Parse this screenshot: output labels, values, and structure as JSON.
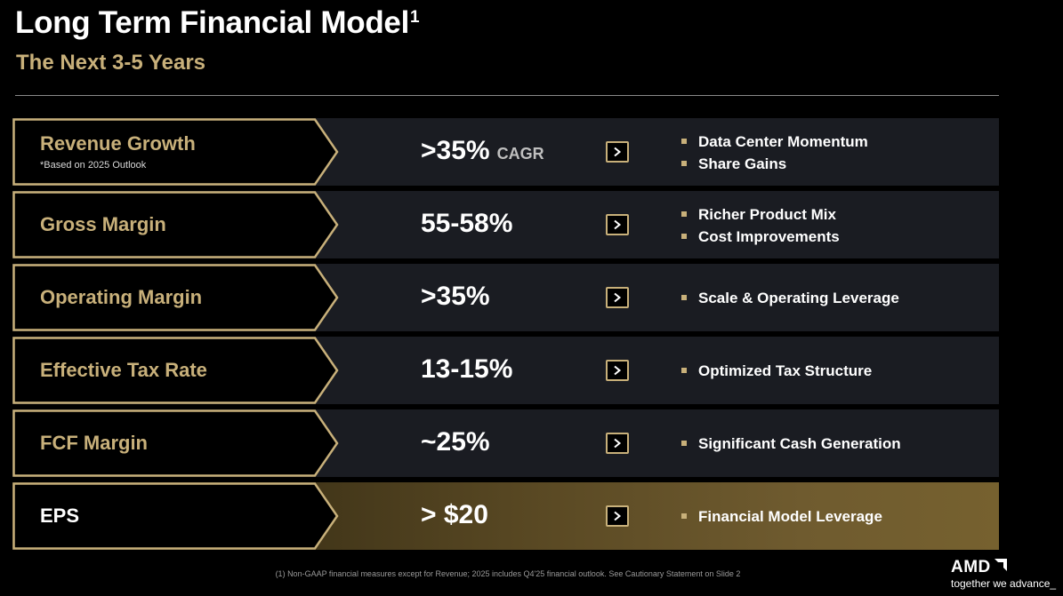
{
  "header": {
    "title": "Long Term Financial Model",
    "title_sup": "1",
    "subtitle": "The Next 3-5 Years"
  },
  "colors": {
    "gold": "#c8b07a",
    "row_background": "#1a1c22",
    "highlight_row": "#6f5b2f"
  },
  "rows": [
    {
      "label": "Revenue Growth",
      "note": "*Based on 2025 Outlook",
      "value": ">35%",
      "value_suffix": "CAGR",
      "bullets": [
        "Data Center Momentum",
        "Share Gains"
      ]
    },
    {
      "label": "Gross Margin",
      "value": "55-58%",
      "bullets": [
        "Richer Product Mix",
        "Cost Improvements"
      ]
    },
    {
      "label": "Operating Margin",
      "value": ">35%",
      "bullets": [
        "Scale & Operating Leverage"
      ]
    },
    {
      "label": "Effective Tax Rate",
      "value": "13-15%",
      "bullets": [
        "Optimized Tax Structure"
      ]
    },
    {
      "label": "FCF Margin",
      "value": "~25%",
      "bullets": [
        "Significant Cash Generation"
      ]
    },
    {
      "label": "EPS",
      "value": "> $20",
      "bullets": [
        "Financial Model Leverage"
      ]
    }
  ],
  "footer": {
    "footnote": "(1) Non-GAAP financial measures except for Revenue; 2025 includes Q4'25 financial outlook. See Cautionary Statement on Slide 2",
    "logo_text": "AMD",
    "tagline": "together we advance_",
    "logo_icon": "amd-arrow-icon"
  }
}
